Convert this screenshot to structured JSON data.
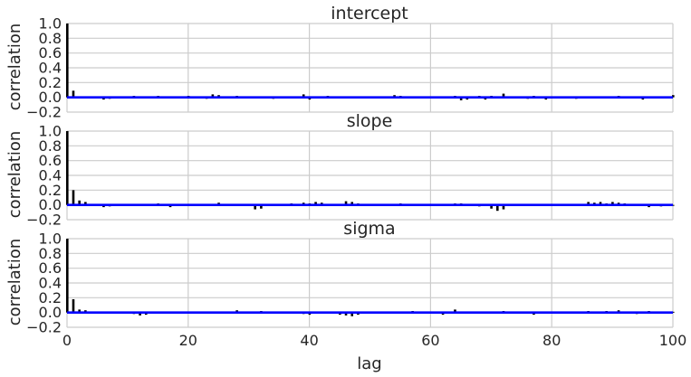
{
  "colors": {
    "background": "#ffffff",
    "grid": "#cccccc",
    "bars": "#000000",
    "zero_line": "#0000ff",
    "text": "#262626"
  },
  "chart_data": [
    {
      "type": "bar",
      "title": "intercept",
      "ylabel": "correlation",
      "xlabel": "",
      "xlim": [
        0,
        100
      ],
      "ylim": [
        -0.2,
        1.0
      ],
      "yticks": [
        "1.0",
        "0.8",
        "0.6",
        "0.4",
        "0.2",
        "0.0",
        "−0.2"
      ],
      "xticks": [],
      "grid": true,
      "x": [
        0,
        1,
        2,
        3,
        4,
        5,
        6,
        7,
        8,
        9,
        10,
        11,
        12,
        13,
        14,
        15,
        16,
        17,
        18,
        19,
        20,
        21,
        22,
        23,
        24,
        25,
        26,
        27,
        28,
        29,
        30,
        31,
        32,
        33,
        34,
        35,
        36,
        37,
        38,
        39,
        40,
        41,
        42,
        43,
        44,
        45,
        46,
        47,
        48,
        49,
        50,
        51,
        52,
        53,
        54,
        55,
        56,
        57,
        58,
        59,
        60,
        61,
        62,
        63,
        64,
        65,
        66,
        67,
        68,
        69,
        70,
        71,
        72,
        73,
        74,
        75,
        76,
        77,
        78,
        79,
        80,
        81,
        82,
        83,
        84,
        85,
        86,
        87,
        88,
        89,
        90,
        91,
        92,
        93,
        94,
        95,
        96,
        97,
        98,
        99,
        100
      ],
      "values": [
        1.0,
        0.09,
        0.0,
        -0.01,
        0.01,
        -0.01,
        -0.03,
        -0.02,
        0.01,
        0.0,
        0.01,
        0.02,
        0.0,
        -0.01,
        0.01,
        0.02,
        0.0,
        -0.01,
        0.01,
        0.0,
        0.02,
        -0.01,
        0.01,
        -0.02,
        0.04,
        0.03,
        0.0,
        -0.01,
        0.02,
        0.0,
        -0.01,
        0.01,
        0.0,
        0.01,
        -0.02,
        0.0,
        0.01,
        -0.01,
        0.0,
        0.04,
        -0.03,
        0.0,
        -0.01,
        0.02,
        0.0,
        0.01,
        -0.01,
        0.0,
        0.01,
        0.0,
        -0.01,
        0.01,
        0.0,
        0.01,
        0.03,
        0.02,
        0.0,
        -0.01,
        0.01,
        0.0,
        0.01,
        0.0,
        -0.01,
        0.01,
        0.02,
        -0.04,
        -0.03,
        0.01,
        0.02,
        -0.03,
        0.02,
        0.0,
        0.05,
        0.01,
        0.0,
        0.01,
        -0.02,
        0.02,
        0.0,
        -0.03,
        0.01,
        -0.01,
        0.0,
        0.0,
        -0.02,
        0.0,
        0.01,
        -0.01,
        0.0,
        0.01,
        0.0,
        0.02,
        -0.01,
        0.0,
        0.01,
        -0.03,
        -0.01,
        0.0,
        -0.01,
        0.0,
        0.03
      ]
    },
    {
      "type": "bar",
      "title": "slope",
      "ylabel": "correlation",
      "xlabel": "",
      "xlim": [
        0,
        100
      ],
      "ylim": [
        -0.2,
        1.0
      ],
      "yticks": [
        "1.0",
        "0.8",
        "0.6",
        "0.4",
        "0.2",
        "0.0",
        "−0.2"
      ],
      "xticks": [],
      "grid": true,
      "x": [
        0,
        1,
        2,
        3,
        4,
        5,
        6,
        7,
        8,
        9,
        10,
        11,
        12,
        13,
        14,
        15,
        16,
        17,
        18,
        19,
        20,
        21,
        22,
        23,
        24,
        25,
        26,
        27,
        28,
        29,
        30,
        31,
        32,
        33,
        34,
        35,
        36,
        37,
        38,
        39,
        40,
        41,
        42,
        43,
        44,
        45,
        46,
        47,
        48,
        49,
        50,
        51,
        52,
        53,
        54,
        55,
        56,
        57,
        58,
        59,
        60,
        61,
        62,
        63,
        64,
        65,
        66,
        67,
        68,
        69,
        70,
        71,
        72,
        73,
        74,
        75,
        76,
        77,
        78,
        79,
        80,
        81,
        82,
        83,
        84,
        85,
        86,
        87,
        88,
        89,
        90,
        91,
        92,
        93,
        94,
        95,
        96,
        97,
        98,
        99,
        100
      ],
      "values": [
        1.0,
        0.2,
        0.06,
        0.04,
        0.01,
        -0.01,
        -0.03,
        -0.02,
        0.0,
        0.01,
        0.0,
        -0.01,
        0.0,
        0.01,
        0.0,
        0.02,
        0.01,
        -0.03,
        0.0,
        0.01,
        0.0,
        -0.01,
        0.0,
        0.01,
        0.0,
        0.03,
        0.01,
        0.0,
        -0.01,
        0.0,
        0.01,
        -0.06,
        -0.05,
        0.0,
        0.01,
        0.0,
        -0.01,
        0.02,
        0.0,
        0.03,
        0.02,
        0.04,
        0.03,
        0.01,
        0.0,
        -0.01,
        0.05,
        0.04,
        0.02,
        0.0,
        -0.01,
        0.01,
        0.0,
        0.0,
        -0.01,
        0.02,
        0.01,
        0.0,
        -0.01,
        0.0,
        0.0,
        0.01,
        -0.01,
        0.0,
        0.02,
        0.02,
        0.0,
        0.01,
        -0.02,
        0.0,
        -0.05,
        -0.08,
        -0.06,
        0.01,
        0.0,
        0.01,
        -0.01,
        0.0,
        0.01,
        -0.01,
        0.0,
        0.0,
        0.01,
        0.0,
        -0.01,
        0.0,
        0.04,
        0.03,
        0.04,
        0.02,
        0.04,
        0.03,
        0.02,
        -0.01,
        0.0,
        0.01,
        -0.03,
        0.0,
        -0.02,
        -0.01,
        0.0
      ]
    },
    {
      "type": "bar",
      "title": "sigma",
      "ylabel": "correlation",
      "xlabel": "lag",
      "xlim": [
        0,
        100
      ],
      "ylim": [
        -0.2,
        1.0
      ],
      "yticks": [
        "1.0",
        "0.8",
        "0.6",
        "0.4",
        "0.2",
        "0.0",
        "−0.2"
      ],
      "xticks": [
        "0",
        "20",
        "40",
        "60",
        "80",
        "100"
      ],
      "grid": true,
      "x": [
        0,
        1,
        2,
        3,
        4,
        5,
        6,
        7,
        8,
        9,
        10,
        11,
        12,
        13,
        14,
        15,
        16,
        17,
        18,
        19,
        20,
        21,
        22,
        23,
        24,
        25,
        26,
        27,
        28,
        29,
        30,
        31,
        32,
        33,
        34,
        35,
        36,
        37,
        38,
        39,
        40,
        41,
        42,
        43,
        44,
        45,
        46,
        47,
        48,
        49,
        50,
        51,
        52,
        53,
        54,
        55,
        56,
        57,
        58,
        59,
        60,
        61,
        62,
        63,
        64,
        65,
        66,
        67,
        68,
        69,
        70,
        71,
        72,
        73,
        74,
        75,
        76,
        77,
        78,
        79,
        80,
        81,
        82,
        83,
        84,
        85,
        86,
        87,
        88,
        89,
        90,
        91,
        92,
        93,
        94,
        95,
        96,
        97,
        98,
        99,
        100
      ],
      "values": [
        1.0,
        0.18,
        0.04,
        0.03,
        0.0,
        -0.01,
        0.0,
        0.01,
        0.0,
        0.01,
        0.0,
        -0.02,
        -0.04,
        -0.03,
        0.01,
        0.0,
        0.01,
        0.0,
        -0.01,
        0.0,
        0.0,
        -0.01,
        0.0,
        0.01,
        0.0,
        -0.01,
        0.0,
        0.01,
        0.03,
        0.0,
        -0.01,
        0.0,
        0.02,
        0.0,
        -0.01,
        0.0,
        0.01,
        0.0,
        0.0,
        -0.02,
        -0.03,
        0.0,
        0.01,
        0.0,
        0.0,
        -0.03,
        -0.04,
        -0.05,
        -0.03,
        0.0,
        0.01,
        0.0,
        -0.01,
        0.0,
        0.01,
        0.0,
        -0.01,
        0.02,
        0.0,
        0.0,
        0.01,
        0.0,
        -0.03,
        0.0,
        0.04,
        0.0,
        -0.01,
        0.0,
        0.01,
        0.0,
        -0.01,
        0.0,
        0.02,
        0.0,
        0.0,
        -0.01,
        0.0,
        -0.03,
        0.0,
        0.01,
        0.0,
        0.0,
        -0.01,
        0.0,
        0.01,
        0.0,
        0.02,
        0.0,
        -0.01,
        0.02,
        0.0,
        0.03,
        0.01,
        0.0,
        -0.02,
        0.0,
        0.02,
        0.0,
        -0.01,
        0.0,
        0.01
      ]
    }
  ]
}
